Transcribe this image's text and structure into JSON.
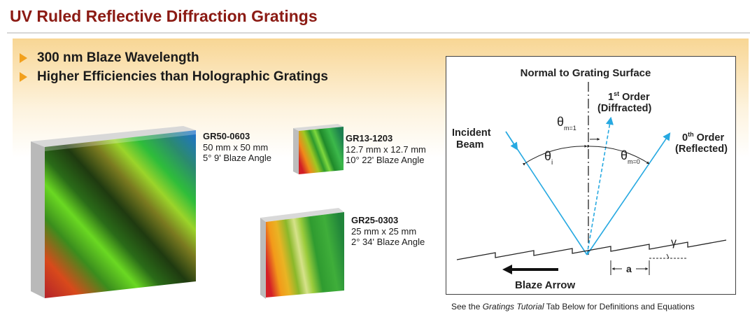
{
  "page": {
    "title": "UV Ruled Reflective Diffraction Gratings"
  },
  "features": [
    "300 nm Blaze Wavelength",
    "Higher Efficiencies than Holographic Gratings"
  ],
  "products": [
    {
      "part_number": "GR50-0603",
      "size": "50 mm x 50 mm",
      "blaze_angle": "5° 9' Blaze Angle"
    },
    {
      "part_number": "GR13-1203",
      "size": "12.7 mm x 12.7 mm",
      "blaze_angle": "10° 22' Blaze Angle"
    },
    {
      "part_number": "GR25-0303",
      "size": "25 mm x 25 mm",
      "blaze_angle": "2° 34' Blaze Angle"
    }
  ],
  "diagram": {
    "normal_label": "Normal to Grating Surface",
    "first_order": {
      "main": "1",
      "sup": "st",
      "rest": " Order",
      "sub_line": "(Diffracted)"
    },
    "zeroth_order": {
      "main": "0",
      "sup": "th",
      "rest": " Order",
      "sub_line": "(Reflected)"
    },
    "incident_line1": "Incident",
    "incident_line2": "Beam",
    "theta": "θ",
    "theta_i_sub": "i",
    "theta_m1_sub": "m=1",
    "theta_m0_sub": "m=0",
    "gamma": "γ",
    "a_label": "a",
    "blaze_arrow": "Blaze Arrow",
    "colors": {
      "beam": "#27a9e1",
      "line": "#222222"
    }
  },
  "caption": {
    "before": "See the ",
    "link": "Gratings Tutorial",
    "after": " Tab Below for Definitions and Equations"
  }
}
